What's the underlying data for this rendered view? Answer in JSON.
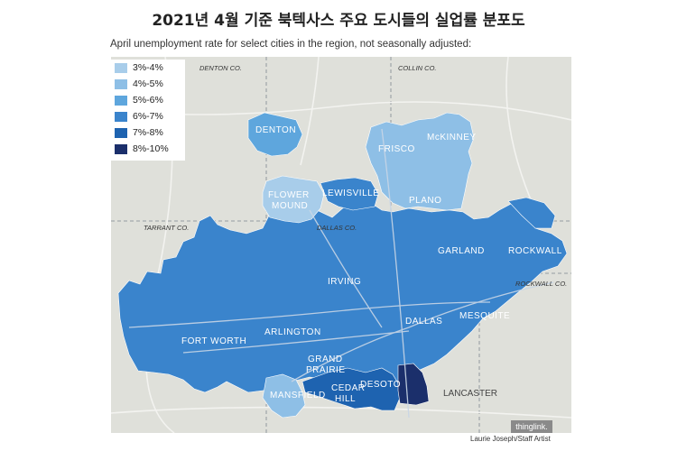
{
  "title": "2021년 4월 기준 북텍사스 주요 도시들의 실업률 분포도",
  "subtitle": "April unemployment rate for select cities in the region, not seasonally adjusted:",
  "legend": [
    {
      "label": "3%-4%",
      "color": "#a8cdea"
    },
    {
      "label": "4%-5%",
      "color": "#8ebfe6"
    },
    {
      "label": "5%-6%",
      "color": "#5ea6dd"
    },
    {
      "label": "6%-7%",
      "color": "#3a84cc"
    },
    {
      "label": "7%-8%",
      "color": "#1e63b0"
    },
    {
      "label": "8%-10%",
      "color": "#1b2f6b"
    }
  ],
  "counties": {
    "denton": "DENTON CO.",
    "collin": "COLLIN CO.",
    "tarrant": "TARRANT CO.",
    "dallas": "DALLAS CO.",
    "rockwall": "ROCKWALL CO."
  },
  "cities": {
    "denton": "DENTON",
    "frisco": "FRISCO",
    "mckinney": "McKINNEY",
    "flower_mound_1": "FLOWER",
    "flower_mound_2": "MOUND",
    "lewisville": "LEWISVILLE",
    "plano": "PLANO",
    "garland": "GARLAND",
    "rockwall": "ROCKWALL",
    "irving": "IRVING",
    "fort_worth": "FORT WORTH",
    "arlington": "ARLINGTON",
    "dallas": "DALLAS",
    "mesquite": "MESQUITE",
    "grand_prairie_1": "GRAND",
    "grand_prairie_2": "PRAIRIE",
    "cedar_hill_1": "CEDAR",
    "cedar_hill_2": "HILL",
    "desoto": "DESOTO",
    "lancaster": "LANCASTER",
    "mansfield": "MANSFIELD"
  },
  "credit": "Laurie Joseph/Staff Artist",
  "watermark": "thinglink."
}
